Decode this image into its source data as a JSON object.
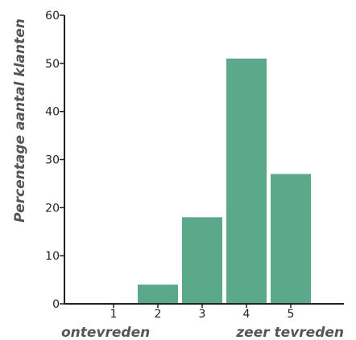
{
  "chart_data": {
    "type": "bar",
    "categories": [
      "1",
      "2",
      "3",
      "4",
      "5"
    ],
    "values": [
      0,
      4,
      18,
      51,
      27
    ],
    "ylabel": "Percentage aantal klanten",
    "xlabel": "",
    "ylim": [
      0,
      60
    ],
    "yticks": [
      0,
      10,
      20,
      30,
      40,
      50,
      60
    ],
    "bar_color": "#5ca88b",
    "axis_color": "#222222",
    "grid": false,
    "x_end_labels": {
      "left": "ontevreden",
      "right": "zeer tevreden"
    }
  }
}
